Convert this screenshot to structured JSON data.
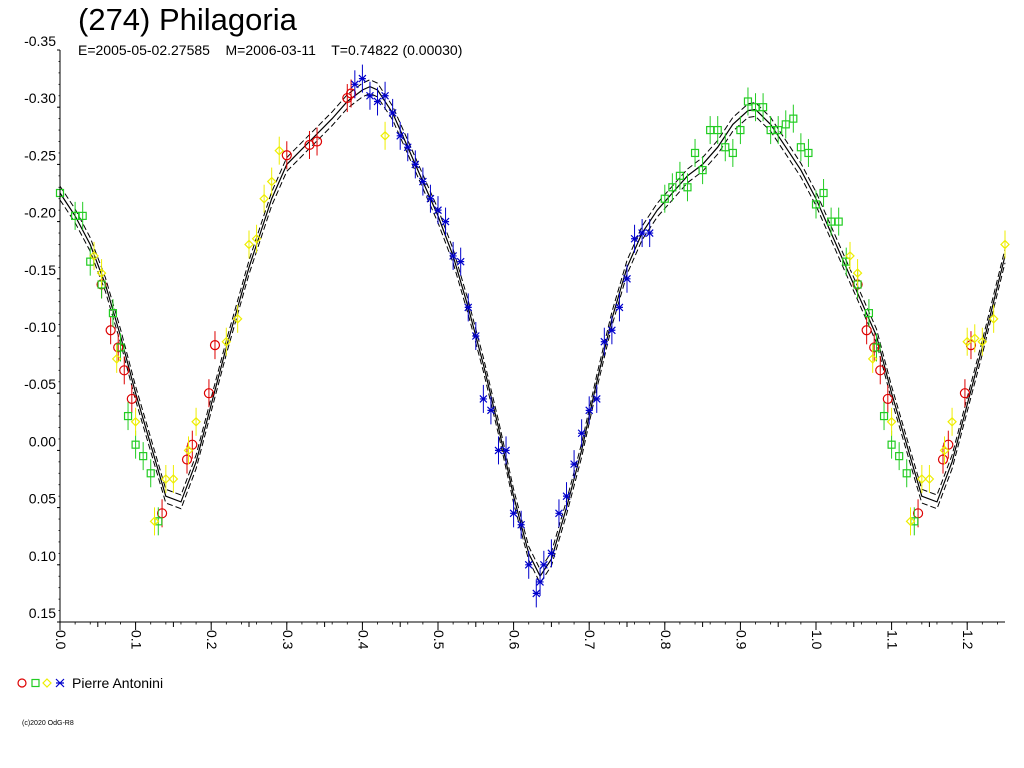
{
  "chart_data": {
    "type": "scatter",
    "title": "(274) Philagoria",
    "subtitle": "E=2005-05-02.27585    M=2006-03-11    T=0.74822 (0.00030)",
    "xlabel": "",
    "ylabel": "",
    "xlim": [
      0.0,
      1.25
    ],
    "ylim": [
      0.15,
      -0.35
    ],
    "x_ticks": [
      "0.0",
      "0.1",
      "0.2",
      "0.3",
      "0.4",
      "0.5",
      "0.6",
      "0.7",
      "0.8",
      "0.9",
      "1.0",
      "1.1",
      "1.2"
    ],
    "y_ticks": [
      "-0.35",
      "-0.30",
      "-0.25",
      "-0.20",
      "-0.15",
      "-0.10",
      "-0.05",
      "0.00",
      "0.05",
      "0.10",
      "0.15"
    ],
    "legend": {
      "label": "Pierre Antonini",
      "placement": "bottom-left"
    },
    "fit_curve": {
      "x": [
        0.0,
        0.02,
        0.04,
        0.06,
        0.08,
        0.1,
        0.12,
        0.14,
        0.16,
        0.18,
        0.2,
        0.22,
        0.25,
        0.28,
        0.3,
        0.33,
        0.36,
        0.38,
        0.4,
        0.41,
        0.42,
        0.44,
        0.46,
        0.48,
        0.5,
        0.52,
        0.54,
        0.56,
        0.58,
        0.6,
        0.62,
        0.635,
        0.65,
        0.67,
        0.69,
        0.71,
        0.73,
        0.75,
        0.77,
        0.79,
        0.81,
        0.83,
        0.85,
        0.87,
        0.89,
        0.91,
        0.92,
        0.94,
        0.96,
        0.98,
        1.0,
        1.02,
        1.04,
        1.06,
        1.08,
        1.1,
        1.12,
        1.14,
        1.16,
        1.18,
        1.2,
        1.22,
        1.25
      ],
      "y": [
        -0.225,
        -0.205,
        -0.18,
        -0.145,
        -0.1,
        -0.05,
        -0.005,
        0.04,
        0.045,
        0.01,
        -0.04,
        -0.09,
        -0.16,
        -0.22,
        -0.25,
        -0.27,
        -0.29,
        -0.305,
        -0.315,
        -0.318,
        -0.315,
        -0.295,
        -0.265,
        -0.235,
        -0.205,
        -0.17,
        -0.125,
        -0.075,
        -0.02,
        0.04,
        0.09,
        0.11,
        0.095,
        0.05,
        0.0,
        -0.06,
        -0.115,
        -0.16,
        -0.19,
        -0.21,
        -0.225,
        -0.24,
        -0.25,
        -0.265,
        -0.285,
        -0.297,
        -0.298,
        -0.285,
        -0.265,
        -0.245,
        -0.22,
        -0.19,
        -0.16,
        -0.13,
        -0.1,
        -0.05,
        -0.005,
        0.04,
        0.045,
        0.01,
        -0.04,
        -0.09,
        -0.17
      ]
    },
    "series": [
      {
        "name": "",
        "marker": "circle",
        "color": "#dd0000",
        "x": [
          0.055,
          0.067,
          0.077,
          0.085,
          0.095,
          0.135,
          0.168,
          0.175,
          0.197,
          0.205,
          0.3,
          0.33,
          0.34,
          0.38,
          0.385,
          1.055,
          1.067,
          1.077,
          1.085,
          1.095,
          1.135,
          1.168,
          1.175,
          1.197,
          1.205
        ],
        "y": [
          -0.145,
          -0.105,
          -0.09,
          -0.07,
          -0.045,
          0.055,
          0.008,
          -0.005,
          -0.05,
          -0.092,
          -0.258,
          -0.267,
          -0.27,
          -0.308,
          -0.312,
          -0.145,
          -0.105,
          -0.09,
          -0.07,
          -0.045,
          0.055,
          0.008,
          -0.005,
          -0.05,
          -0.092
        ]
      },
      {
        "name": "",
        "marker": "square",
        "color": "#22cc22",
        "x": [
          0.0,
          0.02,
          0.03,
          0.04,
          0.055,
          0.07,
          0.08,
          0.09,
          0.1,
          0.11,
          0.12,
          0.13,
          0.8,
          0.81,
          0.82,
          0.83,
          0.84,
          0.85,
          0.86,
          0.87,
          0.88,
          0.89,
          0.9,
          0.91,
          0.92,
          0.93,
          0.94,
          0.95,
          0.96,
          0.97,
          0.98,
          0.99,
          1.0,
          1.01,
          1.02,
          1.03,
          1.04,
          1.055,
          1.07,
          1.08,
          1.09,
          1.1,
          1.11,
          1.12,
          1.13
        ],
        "y": [
          -0.225,
          -0.205,
          -0.205,
          -0.165,
          -0.145,
          -0.12,
          -0.09,
          -0.03,
          -0.005,
          0.005,
          0.02,
          0.062,
          -0.22,
          -0.23,
          -0.24,
          -0.23,
          -0.26,
          -0.245,
          -0.28,
          -0.28,
          -0.265,
          -0.26,
          -0.28,
          -0.305,
          -0.3,
          -0.3,
          -0.28,
          -0.28,
          -0.285,
          -0.29,
          -0.265,
          -0.26,
          -0.215,
          -0.225,
          -0.2,
          -0.2,
          -0.165,
          -0.145,
          -0.12,
          -0.09,
          -0.03,
          -0.005,
          0.005,
          0.02,
          0.062
        ]
      },
      {
        "name": "",
        "marker": "diamond",
        "color": "#eeee00",
        "x": [
          0.045,
          0.055,
          0.075,
          0.1,
          0.125,
          0.14,
          0.15,
          0.17,
          0.18,
          0.22,
          0.235,
          0.25,
          0.26,
          0.27,
          0.28,
          0.29,
          0.43,
          1.045,
          1.055,
          1.075,
          1.1,
          1.125,
          1.14,
          1.15,
          1.17,
          1.18,
          1.2,
          1.21,
          1.22,
          1.235,
          1.25
        ],
        "y": [
          -0.17,
          -0.155,
          -0.08,
          -0.025,
          0.062,
          0.025,
          0.025,
          0.0,
          -0.025,
          -0.095,
          -0.115,
          -0.18,
          -0.185,
          -0.22,
          -0.235,
          -0.262,
          -0.275,
          -0.17,
          -0.155,
          -0.08,
          -0.025,
          0.062,
          0.025,
          0.025,
          0.0,
          -0.025,
          -0.095,
          -0.098,
          -0.095,
          -0.115,
          -0.18
        ]
      },
      {
        "name": "",
        "marker": "star",
        "color": "#0000cc",
        "x": [
          0.39,
          0.4,
          0.41,
          0.42,
          0.43,
          0.44,
          0.45,
          0.46,
          0.47,
          0.48,
          0.49,
          0.5,
          0.51,
          0.52,
          0.53,
          0.54,
          0.55,
          0.56,
          0.57,
          0.58,
          0.59,
          0.6,
          0.61,
          0.62,
          0.63,
          0.635,
          0.64,
          0.65,
          0.66,
          0.67,
          0.68,
          0.69,
          0.7,
          0.71,
          0.72,
          0.73,
          0.74,
          0.75,
          0.76,
          0.77,
          0.78
        ],
        "y": [
          -0.32,
          -0.325,
          -0.31,
          -0.305,
          -0.31,
          -0.295,
          -0.275,
          -0.265,
          -0.25,
          -0.235,
          -0.22,
          -0.21,
          -0.2,
          -0.17,
          -0.165,
          -0.125,
          -0.1,
          -0.045,
          -0.035,
          0.0,
          0.0,
          0.055,
          0.065,
          0.1,
          0.125,
          0.115,
          0.1,
          0.09,
          0.055,
          0.04,
          0.012,
          -0.015,
          -0.035,
          -0.045,
          -0.095,
          -0.105,
          -0.125,
          -0.15,
          -0.185,
          -0.19,
          -0.19
        ]
      }
    ]
  },
  "copyright": "(c)2020 OdG-R8",
  "colors": {
    "fit_line": "#000000",
    "axis": "#000000"
  }
}
